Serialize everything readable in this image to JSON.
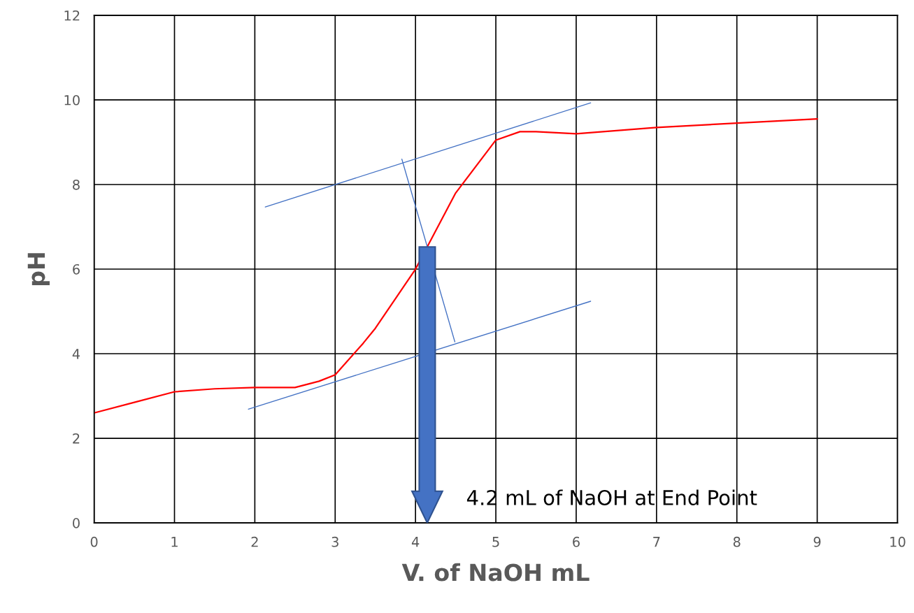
{
  "chart_data": {
    "type": "line",
    "xlabel": "V. of NaOH mL",
    "ylabel": "pH",
    "xlim": [
      0,
      10
    ],
    "ylim": [
      0,
      12
    ],
    "xticks": [
      0,
      1,
      2,
      3,
      4,
      5,
      6,
      7,
      8,
      9,
      10
    ],
    "yticks": [
      0,
      2,
      4,
      6,
      8,
      10,
      12
    ],
    "grid": true,
    "legend": false,
    "marker": "none",
    "line_style": "solid",
    "series": [
      {
        "color": "#ff0000",
        "x": [
          0,
          0.5,
          1,
          1.5,
          2,
          2.5,
          2.8,
          3,
          3.35,
          3.5,
          4,
          4.5,
          5,
          5.3,
          5.5,
          6,
          7,
          8,
          9
        ],
        "values": [
          2.6,
          2.85,
          3.1,
          3.17,
          3.2,
          3.2,
          3.35,
          3.5,
          4.25,
          4.6,
          6.0,
          7.8,
          9.05,
          9.25,
          9.25,
          9.2,
          9.35,
          9.45,
          9.55
        ]
      },
      {
        "type": "line",
        "color": "#4472c4",
        "x": [
          2.13,
          6.18
        ],
        "values": [
          7.47,
          9.93
        ]
      },
      {
        "type": "line",
        "color": "#4472c4",
        "x": [
          1.92,
          6.18
        ],
        "values": [
          2.69,
          5.24
        ]
      },
      {
        "type": "line",
        "color": "#4472c4",
        "x": [
          3.83,
          4.49
        ],
        "values": [
          8.6,
          4.28
        ]
      }
    ],
    "annotations": [
      "4.2 mL of NaOH at End Point"
    ]
  }
}
